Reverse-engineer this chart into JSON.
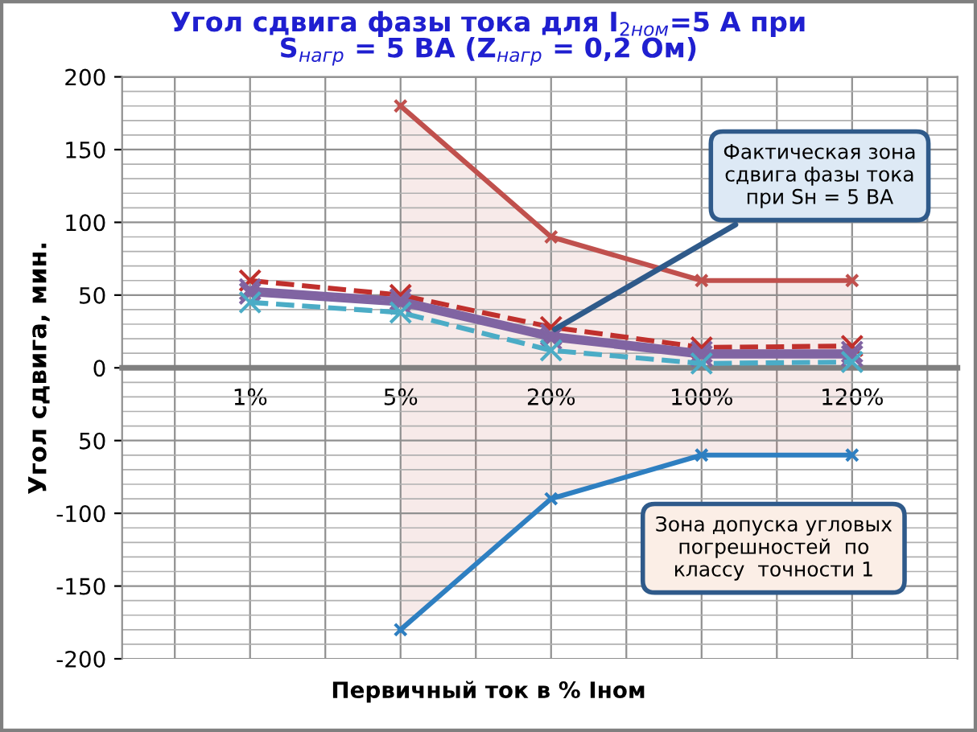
{
  "chart_data": {
    "type": "line",
    "title": "Угол сдвига фазы тока для I$_{2ном}$=5 А при\nS$_{нагр}$ = 5 ВА (Z$_{нагр}$ = 0,2 Ом)",
    "xlabel": "Первичный ток в % Iном",
    "ylabel": "Угол сдвига, мин.",
    "categories": [
      "1%",
      "5%",
      "20%",
      "100%",
      "120%"
    ],
    "ylim": [
      -200,
      200
    ],
    "yticks": [
      -200,
      -150,
      -100,
      {
        "value": -50,
        "label": "50"
      },
      0,
      50,
      100,
      150,
      200
    ],
    "grid": true,
    "legend": false,
    "series": [
      {
        "color": "#c0504d",
        "values": [
          null,
          180,
          90,
          60,
          60
        ],
        "marker": "cross",
        "line_style": "solid",
        "lower": [
          null,
          -180,
          -90,
          -60,
          -60
        ],
        "upper": [
          null,
          180,
          90,
          60,
          60
        ]
      },
      {
        "color": "#2e7fc1",
        "values": [
          null,
          -180,
          -90,
          -60,
          -60
        ],
        "marker": "cross",
        "line_style": "solid"
      },
      {
        "color": "#c0302d",
        "values": [
          60,
          50,
          28,
          14,
          15
        ],
        "marker": "cross",
        "line_style": "dashed"
      },
      {
        "color": "#8064a2",
        "values": [
          54,
          47,
          23,
          11,
          11
        ],
        "marker": "cross",
        "line_style": "solid"
      },
      {
        "color": "#8064a2",
        "values": [
          51,
          44,
          20,
          8,
          8
        ],
        "marker": "cross",
        "line_style": "solid"
      },
      {
        "color": "#4bacc6",
        "values": [
          45,
          38,
          12,
          3,
          4
        ],
        "marker": "cross",
        "line_style": "dashed"
      }
    ],
    "annotations": [
      {
        "text": "Фактическая зона\nсдвига фазы тока\nпри Sн = 5 ВА",
        "x": "20%",
        "y": 25
      },
      "Зона допуска угловых\nпогрешностей  по\nклассу  точности 1"
    ]
  }
}
